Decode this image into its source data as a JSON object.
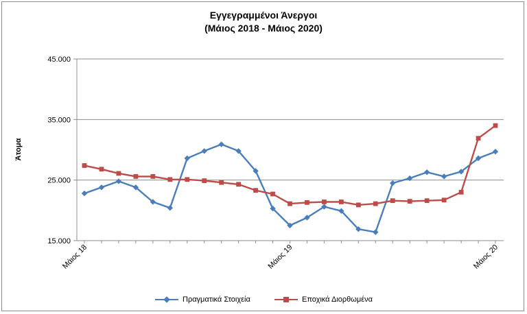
{
  "chart_data": {
    "type": "line",
    "title": "Εγγεγραμμένοι Άνεργοι",
    "subtitle": "(Μάιος 2018 - Μάιος 2020)",
    "ylabel": "Άτομα",
    "xlabel": "",
    "ylim": [
      15000,
      45000
    ],
    "yticks": [
      "15.000",
      "25.000",
      "35.000",
      "45.000"
    ],
    "ytick_values": [
      15000,
      25000,
      35000,
      45000
    ],
    "x_tick_labels": [
      {
        "index": 0,
        "label": "Μάιος 18"
      },
      {
        "index": 12,
        "label": "Μάιος 19"
      },
      {
        "index": 24,
        "label": "Μάιος 20"
      }
    ],
    "n_points": 25,
    "grid": "horizontal",
    "legend_position": "bottom",
    "series": [
      {
        "name": "Πραγματικά Στοιχεία",
        "color": "#4a7ebb",
        "marker": "diamond",
        "values": [
          22800,
          23800,
          24800,
          23800,
          21400,
          20400,
          28600,
          29800,
          30900,
          29800,
          26500,
          20300,
          17500,
          18800,
          20600,
          19900,
          16900,
          16400,
          24500,
          25300,
          26300,
          25600,
          26400,
          28600,
          29700
        ]
      },
      {
        "name": "Εποχικά Διορθωμένα",
        "color": "#be4b48",
        "marker": "square",
        "values": [
          27400,
          26800,
          26100,
          25600,
          25600,
          25100,
          25100,
          24900,
          24600,
          24300,
          23300,
          22700,
          21100,
          21300,
          21400,
          21400,
          20900,
          21100,
          21600,
          21500,
          21600,
          21700,
          23000,
          31900,
          34000
        ]
      }
    ]
  }
}
